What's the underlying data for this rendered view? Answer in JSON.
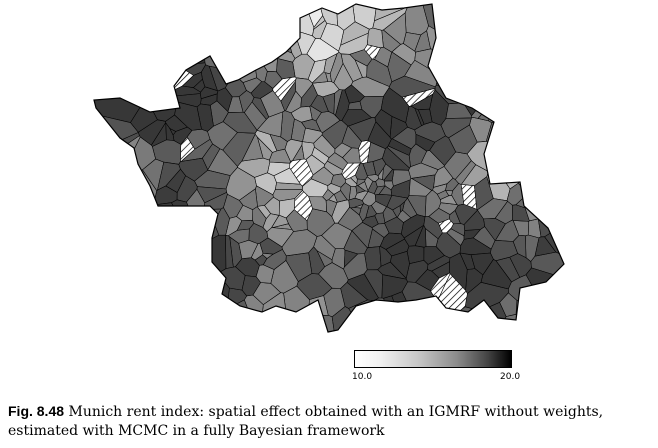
{
  "figure": {
    "label": "Fig. 8.48",
    "caption_text": "Munich rent index: spatial effect obtained with an IGMRF without weights, estimated with MCMC in a fully Bayesian framework"
  },
  "legend": {
    "min_label": "10.0",
    "max_label": "20.0"
  },
  "colors": {
    "scale_low": "#ffffff",
    "scale_high": "#000000",
    "border": "#000000",
    "missing": "hatched"
  }
}
